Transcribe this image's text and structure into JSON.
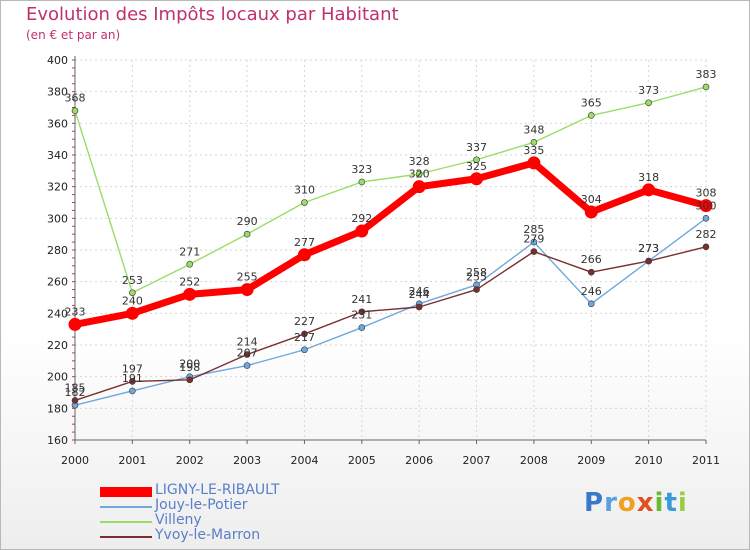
{
  "chart_data": {
    "type": "line",
    "title": "Evolution des Impôts locaux par Habitant",
    "subtitle": "(en € et par an)",
    "xlabel": "",
    "ylabel": "",
    "x": [
      "2000",
      "2001",
      "2002",
      "2003",
      "2004",
      "2005",
      "2006",
      "2007",
      "2008",
      "2009",
      "2010",
      "2011"
    ],
    "ylim": [
      160,
      400
    ],
    "yticks": [
      160,
      180,
      200,
      220,
      240,
      260,
      280,
      300,
      320,
      340,
      360,
      380,
      400
    ],
    "grid": true,
    "legend_position": "bottom-left",
    "series": [
      {
        "name": "LIGNY-LE-RIBAULT",
        "color": "#ff0000",
        "values": [
          233,
          240,
          252,
          255,
          277,
          292,
          320,
          325,
          335,
          304,
          318,
          308
        ]
      },
      {
        "name": "Jouy-le-Potier",
        "color": "#6fa8dc",
        "values": [
          182,
          191,
          200,
          207,
          217,
          231,
          246,
          258,
          285,
          246,
          273,
          300
        ]
      },
      {
        "name": "Villeny",
        "color": "#99dd66",
        "values": [
          368,
          253,
          271,
          290,
          310,
          323,
          328,
          337,
          348,
          365,
          373,
          383
        ]
      },
      {
        "name": "Yvoy-le-Marron",
        "color": "#7a2f2f",
        "values": [
          185,
          197,
          198,
          214,
          227,
          241,
          244,
          255,
          279,
          266,
          273,
          282
        ]
      }
    ]
  },
  "brand": {
    "name": "Proxiti",
    "letters": [
      {
        "ch": "P",
        "color": "#3a78c9"
      },
      {
        "ch": "r",
        "color": "#5aa0e0"
      },
      {
        "ch": "o",
        "color": "#f0a020"
      },
      {
        "ch": "x",
        "color": "#e05020"
      },
      {
        "ch": "i",
        "color": "#66bb33"
      },
      {
        "ch": "t",
        "color": "#3a9ad9"
      },
      {
        "ch": "i",
        "color": "#9bcc44"
      }
    ]
  }
}
